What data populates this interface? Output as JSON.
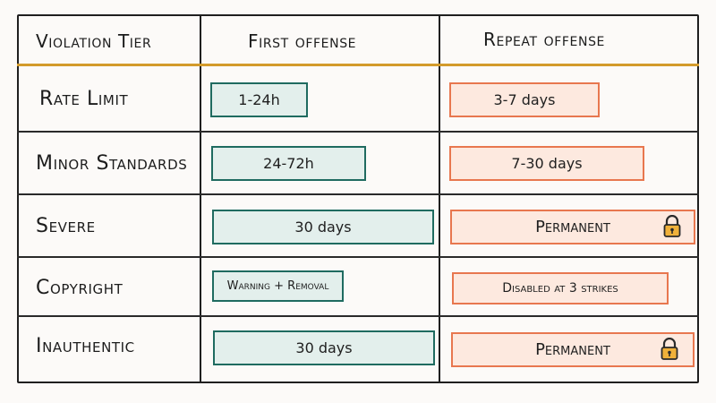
{
  "table": {
    "headers": {
      "tier": "Violation Tier",
      "first": "First offense",
      "repeat": "Repeat offense"
    },
    "rows": [
      {
        "tier": "Rate Limit",
        "first": "1-24h",
        "repeat": "3-7 days",
        "locked": false
      },
      {
        "tier": "Minor Standards",
        "first": "24-72h",
        "repeat": "7-30 days",
        "locked": false
      },
      {
        "tier": "Severe",
        "first": "30 days",
        "repeat": "Permanent",
        "locked": true
      },
      {
        "tier": "Copyright",
        "first": "Warning + Removal",
        "repeat": "Disabled at 3 strikes",
        "locked": false
      },
      {
        "tier": "Inauthentic",
        "first": "30 days",
        "repeat": "Permanent",
        "locked": true
      }
    ]
  },
  "colors": {
    "header_rule": "#d39b2b",
    "first_fill": "#e3efec",
    "first_border": "#1f6b60",
    "repeat_fill": "#fde9df",
    "repeat_border": "#e8774f",
    "lock_body": "#f0b13a"
  },
  "icons": {
    "lock": "padlock-icon"
  }
}
